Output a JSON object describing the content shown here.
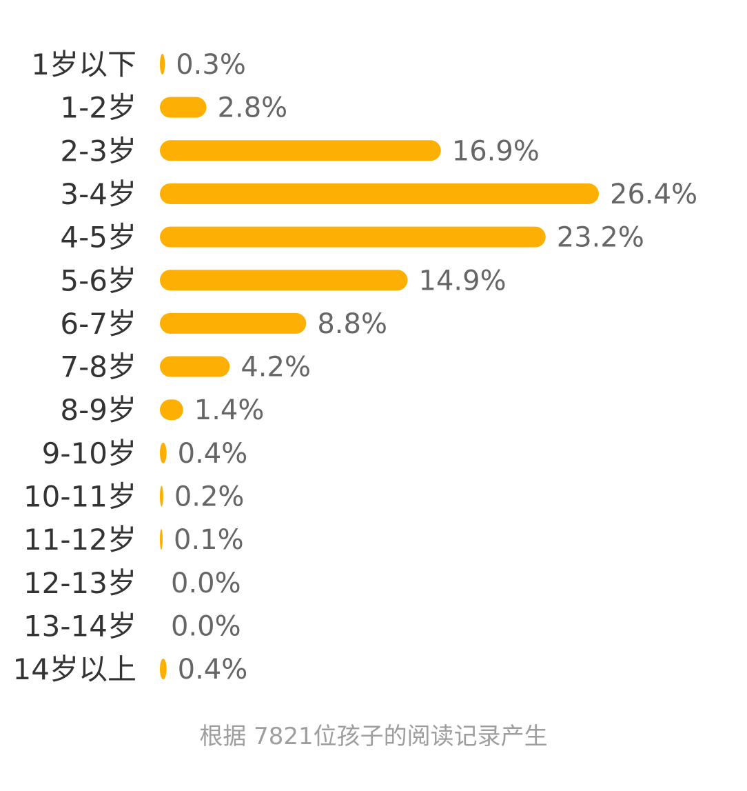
{
  "chart_data": {
    "type": "bar",
    "orientation": "horizontal",
    "categories": [
      "1岁以下",
      "1-2岁",
      "2-3岁",
      "3-4岁",
      "4-5岁",
      "5-6岁",
      "6-7岁",
      "7-8岁",
      "8-9岁",
      "9-10岁",
      "10-11岁",
      "11-12岁",
      "12-13岁",
      "13-14岁",
      "14岁以上"
    ],
    "values": [
      0.3,
      2.8,
      16.9,
      26.4,
      23.2,
      14.9,
      8.8,
      4.2,
      1.4,
      0.4,
      0.2,
      0.1,
      0.0,
      0.0,
      0.4
    ],
    "value_labels": [
      "0.3%",
      "2.8%",
      "16.9%",
      "26.4%",
      "23.2%",
      "14.9%",
      "8.8%",
      "4.2%",
      "1.4%",
      "0.4%",
      "0.2%",
      "0.1%",
      "0.0%",
      "0.0%",
      "0.4%"
    ],
    "unit": "%",
    "xlim": [
      0,
      26.4
    ],
    "grid": false,
    "bar_color": "#FDB003"
  },
  "footnote": "根据 7821位孩子的阅读记录产生",
  "colors": {
    "bar": "#FDB003",
    "category_text": "#333333",
    "value_text": "#666666",
    "footnote_text": "#9e9e9e"
  }
}
